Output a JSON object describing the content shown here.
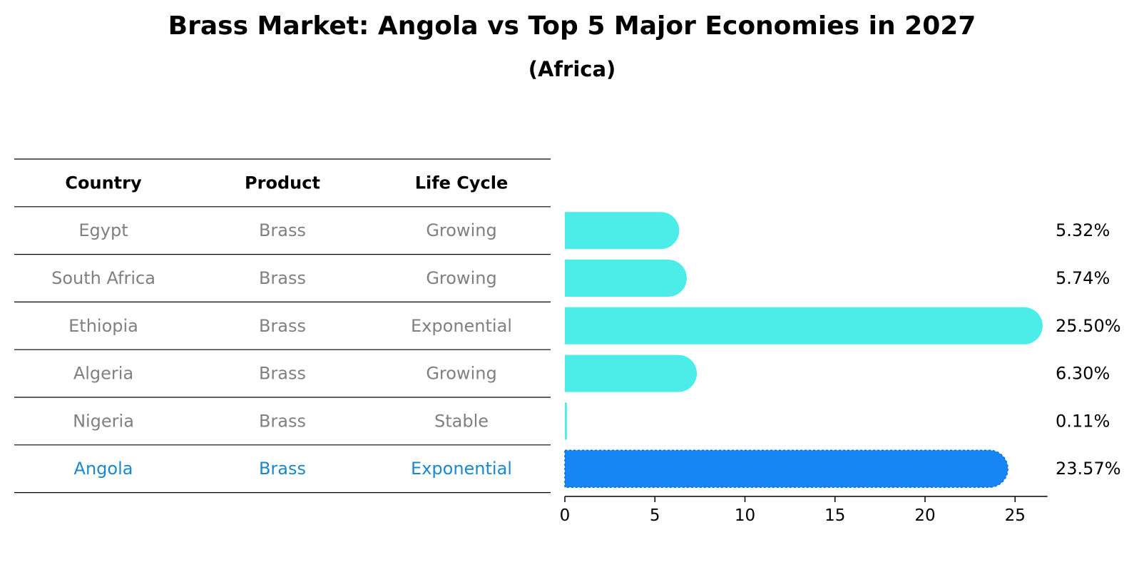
{
  "chart_data": {
    "type": "bar",
    "orientation": "horizontal",
    "title": "Brass Market: Angola vs Top 5 Major Economies in 2027",
    "subtitle": "(Africa)",
    "table": {
      "headers": [
        "Country",
        "Product",
        "Life Cycle"
      ],
      "rows": [
        [
          "Egypt",
          "Brass",
          "Growing"
        ],
        [
          "South Africa",
          "Brass",
          "Growing"
        ],
        [
          "Ethiopia",
          "Brass",
          "Exponential"
        ],
        [
          "Algeria",
          "Brass",
          "Growing"
        ],
        [
          "Nigeria",
          "Brass",
          "Stable"
        ],
        [
          "Angola",
          "Brass",
          "Exponential"
        ]
      ],
      "highlight_row": 5
    },
    "categories": [
      "Egypt",
      "South Africa",
      "Ethiopia",
      "Algeria",
      "Nigeria",
      "Angola"
    ],
    "values": [
      5.32,
      5.74,
      25.5,
      6.3,
      0.11,
      23.57
    ],
    "value_labels": [
      "5.32%",
      "5.74%",
      "25.50%",
      "6.30%",
      "0.11%",
      "23.57%"
    ],
    "xticks": [
      "0",
      "5",
      "10",
      "15",
      "20",
      "25"
    ],
    "xlim": [
      0,
      26.8
    ],
    "xlabel": "",
    "ylabel": "",
    "grid": false,
    "colors": {
      "bar": "#4cede9",
      "highlight_bar": "#1885f5",
      "text": "#808080",
      "highlight_text": "#1a87d1",
      "line": "#000000"
    }
  }
}
